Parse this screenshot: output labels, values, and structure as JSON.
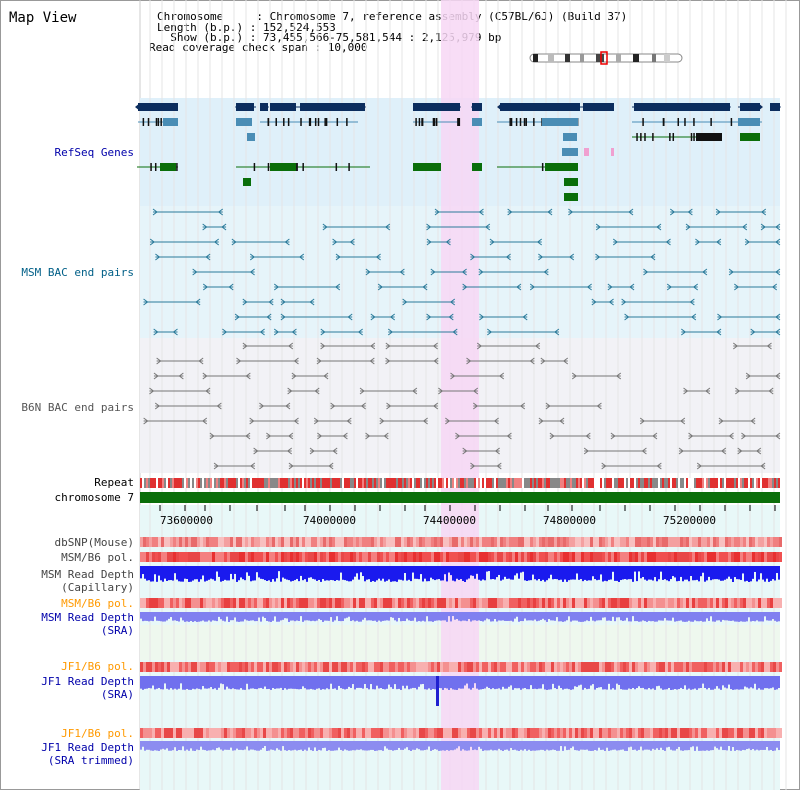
{
  "title": "Map View",
  "header": {
    "chromosome": "Chromosome     : Chromosome 7, reference assembly (C57BL/6J) (Build 37)",
    "length": "Length (b.p.) : 152,524,553",
    "show": "  Show (b.p.) : 73,455,566-75,581,544 : 2,125,979 bp",
    "coverage": "Read coverage check span : 10,000"
  },
  "labels": {
    "refseq": "RefSeq Genes",
    "msm_bac": "MSM BAC end pairs",
    "b6n_bac": "B6N BAC end pairs",
    "repeat": "Repeat",
    "chrom": "chromosome 7",
    "dbsnp": "dbSNP(Mouse)",
    "msm_pol1": "MSM/B6 pol.",
    "msm_depth_cap": "MSM Read Depth\n(Capillary)",
    "msm_pol2": "MSM/B6 pol.",
    "msm_depth_sra": "MSM Read Depth\n(SRA)",
    "jf1_pol1": "JF1/B6 pol.",
    "jf1_depth_sra": "JF1 Read Depth\n(SRA)",
    "jf1_pol2": "JF1/B6 pol.",
    "jf1_depth_trim": "JF1 Read Depth\n(SRA trimmed)"
  },
  "axis_ticks": [
    "73600000",
    "74000000",
    "74400000",
    "74800000",
    "75200000"
  ],
  "colors": {
    "label_blue": "#0000aa",
    "label_teal": "#005f87",
    "label_orange": "#ff9900",
    "gene_navy": "#0c2d5e",
    "gene_mid": "#4a8db5",
    "gene_green": "#0a6e0a",
    "refseq_bg": "#dff0fa",
    "highlight": "#f7d7f4"
  }
}
